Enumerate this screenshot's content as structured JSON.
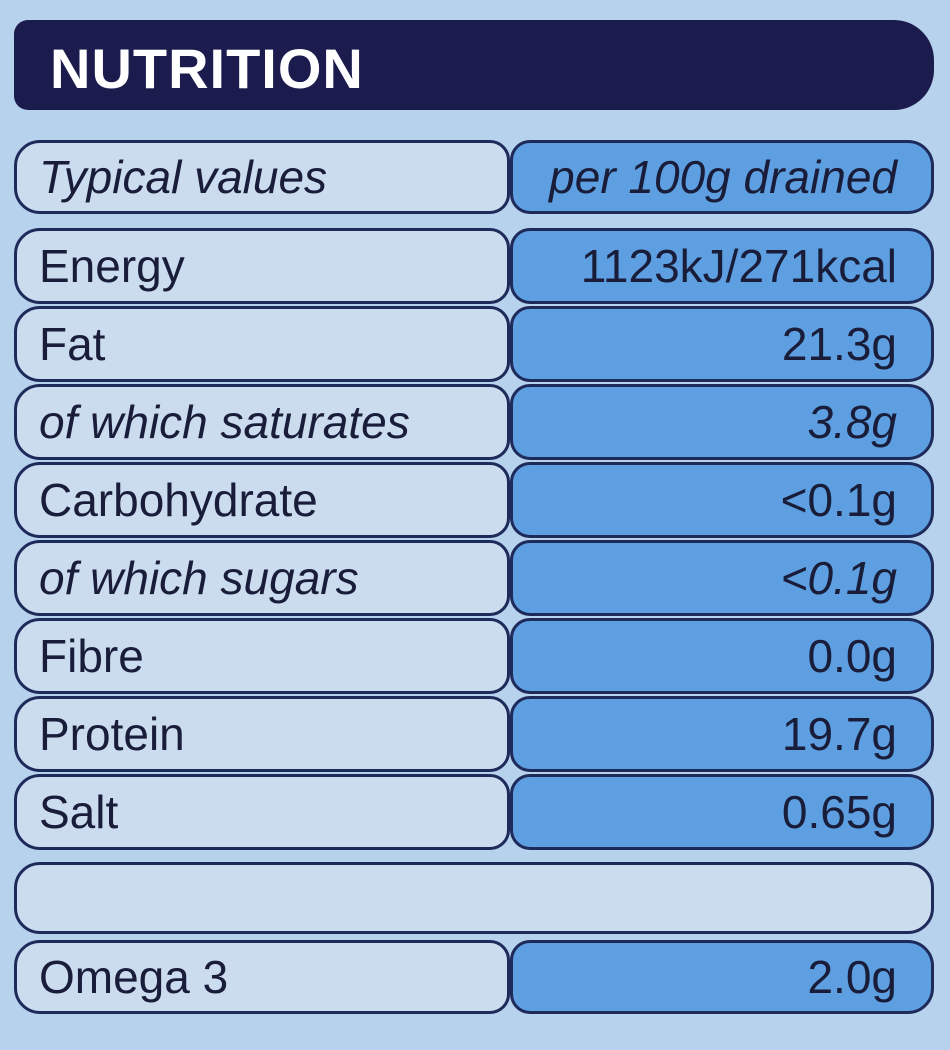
{
  "title": "NUTRITION",
  "table": {
    "header": [
      "Typical values",
      "per 100g drained"
    ],
    "rows": [
      [
        "Energy",
        "1123kJ/271kcal"
      ],
      [
        "Fat",
        "21.3g"
      ],
      [
        "of which saturates",
        "3.8g"
      ],
      [
        "Carbohydrate",
        "<0.1g"
      ],
      [
        "of which sugars",
        "<0.1g"
      ],
      [
        "Fibre",
        "0.0g"
      ],
      [
        "Protein",
        "19.7g"
      ],
      [
        "Salt",
        "0.65g"
      ]
    ],
    "footer_rows": [
      [
        "Omega 3",
        "2.0g"
      ]
    ]
  }
}
